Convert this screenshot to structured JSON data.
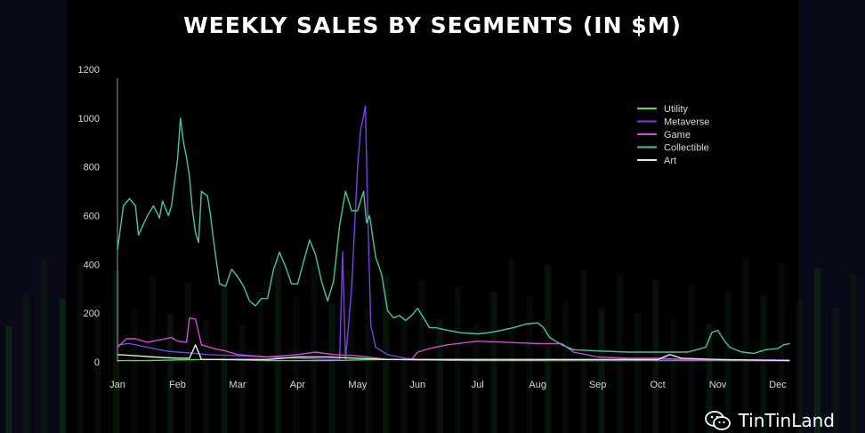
{
  "chart_data": {
    "type": "line",
    "title": "WEEKLY SALES BY SEGMENTS (IN $M)",
    "xlabel": "",
    "ylabel": "",
    "ylim": [
      0,
      1200
    ],
    "yticks": [
      0,
      200,
      400,
      600,
      800,
      1000,
      1200
    ],
    "x_categories": [
      "Jan",
      "Feb",
      "Mar",
      "Apr",
      "May",
      "Jun",
      "Jul",
      "Aug",
      "Sep",
      "Oct",
      "Nov",
      "Dec"
    ],
    "grid": false,
    "legend_position": "top-right",
    "series": [
      {
        "name": "Utility",
        "color": "#4ee04e",
        "points": [
          [
            0.0,
            5
          ],
          [
            0.5,
            5
          ],
          [
            1.0,
            8
          ],
          [
            1.5,
            10
          ],
          [
            2.0,
            8
          ],
          [
            2.5,
            5
          ],
          [
            3.0,
            5
          ],
          [
            3.5,
            5
          ],
          [
            4.0,
            8
          ],
          [
            4.5,
            10
          ],
          [
            5.0,
            8
          ],
          [
            6.0,
            5
          ],
          [
            7.0,
            5
          ],
          [
            8.0,
            5
          ],
          [
            9.0,
            5
          ],
          [
            10.0,
            5
          ],
          [
            11.0,
            5
          ],
          [
            11.2,
            5
          ]
        ]
      },
      {
        "name": "Metaverse",
        "color": "#7b3fe4",
        "points": [
          [
            0.0,
            70
          ],
          [
            0.2,
            75
          ],
          [
            0.5,
            60
          ],
          [
            0.8,
            45
          ],
          [
            1.0,
            40
          ],
          [
            1.3,
            35
          ],
          [
            1.5,
            30
          ],
          [
            2.0,
            25
          ],
          [
            2.5,
            20
          ],
          [
            3.0,
            15
          ],
          [
            3.5,
            10
          ],
          [
            3.7,
            10
          ],
          [
            3.75,
            450
          ],
          [
            3.8,
            10
          ],
          [
            3.9,
            300
          ],
          [
            4.0,
            800
          ],
          [
            4.05,
            950
          ],
          [
            4.1,
            1010
          ],
          [
            4.13,
            1050
          ],
          [
            4.17,
            600
          ],
          [
            4.22,
            150
          ],
          [
            4.3,
            60
          ],
          [
            4.5,
            30
          ],
          [
            4.8,
            15
          ],
          [
            5.0,
            10
          ],
          [
            6.0,
            10
          ],
          [
            7.0,
            10
          ],
          [
            8.0,
            8
          ],
          [
            9.0,
            8
          ],
          [
            10.0,
            8
          ],
          [
            11.2,
            8
          ]
        ]
      },
      {
        "name": "Game",
        "color": "#d14bd1",
        "points": [
          [
            0.0,
            60
          ],
          [
            0.15,
            95
          ],
          [
            0.3,
            95
          ],
          [
            0.5,
            80
          ],
          [
            0.7,
            90
          ],
          [
            0.9,
            100
          ],
          [
            1.0,
            85
          ],
          [
            1.15,
            80
          ],
          [
            1.2,
            180
          ],
          [
            1.3,
            175
          ],
          [
            1.4,
            70
          ],
          [
            1.6,
            55
          ],
          [
            1.8,
            45
          ],
          [
            2.0,
            30
          ],
          [
            2.5,
            20
          ],
          [
            3.0,
            30
          ],
          [
            3.3,
            40
          ],
          [
            3.6,
            30
          ],
          [
            4.0,
            25
          ],
          [
            4.5,
            10
          ],
          [
            4.9,
            10
          ],
          [
            5.0,
            40
          ],
          [
            5.2,
            55
          ],
          [
            5.5,
            70
          ],
          [
            6.0,
            85
          ],
          [
            6.5,
            80
          ],
          [
            7.0,
            75
          ],
          [
            7.4,
            75
          ],
          [
            7.6,
            40
          ],
          [
            8.0,
            20
          ],
          [
            8.5,
            15
          ],
          [
            9.0,
            15
          ],
          [
            9.5,
            10
          ],
          [
            10.0,
            10
          ],
          [
            10.5,
            5
          ],
          [
            11.2,
            5
          ]
        ]
      },
      {
        "name": "Collectible",
        "color": "#3fc9a0",
        "points": [
          [
            0.0,
            460
          ],
          [
            0.1,
            640
          ],
          [
            0.2,
            670
          ],
          [
            0.3,
            640
          ],
          [
            0.35,
            520
          ],
          [
            0.5,
            600
          ],
          [
            0.6,
            640
          ],
          [
            0.7,
            590
          ],
          [
            0.75,
            660
          ],
          [
            0.85,
            600
          ],
          [
            0.9,
            640
          ],
          [
            1.0,
            830
          ],
          [
            1.05,
            1000
          ],
          [
            1.1,
            900
          ],
          [
            1.15,
            840
          ],
          [
            1.2,
            760
          ],
          [
            1.25,
            620
          ],
          [
            1.3,
            530
          ],
          [
            1.35,
            490
          ],
          [
            1.4,
            700
          ],
          [
            1.5,
            680
          ],
          [
            1.55,
            600
          ],
          [
            1.6,
            500
          ],
          [
            1.7,
            320
          ],
          [
            1.8,
            310
          ],
          [
            1.9,
            380
          ],
          [
            2.0,
            350
          ],
          [
            2.1,
            310
          ],
          [
            2.2,
            250
          ],
          [
            2.3,
            230
          ],
          [
            2.4,
            260
          ],
          [
            2.5,
            260
          ],
          [
            2.6,
            380
          ],
          [
            2.7,
            450
          ],
          [
            2.8,
            390
          ],
          [
            2.9,
            320
          ],
          [
            3.0,
            320
          ],
          [
            3.1,
            410
          ],
          [
            3.2,
            500
          ],
          [
            3.3,
            440
          ],
          [
            3.4,
            330
          ],
          [
            3.5,
            250
          ],
          [
            3.6,
            330
          ],
          [
            3.7,
            560
          ],
          [
            3.8,
            700
          ],
          [
            3.9,
            620
          ],
          [
            4.0,
            620
          ],
          [
            4.05,
            660
          ],
          [
            4.1,
            700
          ],
          [
            4.15,
            570
          ],
          [
            4.2,
            600
          ],
          [
            4.3,
            430
          ],
          [
            4.4,
            360
          ],
          [
            4.5,
            210
          ],
          [
            4.6,
            180
          ],
          [
            4.7,
            190
          ],
          [
            4.8,
            170
          ],
          [
            4.9,
            190
          ],
          [
            5.0,
            220
          ],
          [
            5.1,
            180
          ],
          [
            5.2,
            140
          ],
          [
            5.3,
            140
          ],
          [
            5.5,
            130
          ],
          [
            5.7,
            120
          ],
          [
            6.0,
            115
          ],
          [
            6.2,
            120
          ],
          [
            6.4,
            130
          ],
          [
            6.6,
            140
          ],
          [
            6.8,
            155
          ],
          [
            7.0,
            160
          ],
          [
            7.1,
            140
          ],
          [
            7.2,
            100
          ],
          [
            7.4,
            70
          ],
          [
            7.6,
            50
          ],
          [
            8.0,
            45
          ],
          [
            8.5,
            40
          ],
          [
            9.0,
            40
          ],
          [
            9.5,
            40
          ],
          [
            9.8,
            60
          ],
          [
            9.9,
            120
          ],
          [
            10.0,
            130
          ],
          [
            10.1,
            90
          ],
          [
            10.2,
            60
          ],
          [
            10.4,
            40
          ],
          [
            10.6,
            35
          ],
          [
            10.8,
            50
          ],
          [
            11.0,
            55
          ],
          [
            11.1,
            70
          ],
          [
            11.2,
            75
          ]
        ]
      },
      {
        "name": "Art",
        "color": "#e6e6e6",
        "points": [
          [
            0.0,
            30
          ],
          [
            0.3,
            25
          ],
          [
            0.6,
            20
          ],
          [
            1.0,
            15
          ],
          [
            1.2,
            15
          ],
          [
            1.3,
            70
          ],
          [
            1.4,
            10
          ],
          [
            1.6,
            10
          ],
          [
            2.0,
            10
          ],
          [
            2.5,
            10
          ],
          [
            3.0,
            20
          ],
          [
            3.5,
            20
          ],
          [
            4.0,
            15
          ],
          [
            4.5,
            10
          ],
          [
            5.0,
            10
          ],
          [
            6.0,
            10
          ],
          [
            7.0,
            10
          ],
          [
            8.0,
            10
          ],
          [
            9.0,
            10
          ],
          [
            9.2,
            30
          ],
          [
            9.4,
            15
          ],
          [
            10.0,
            10
          ],
          [
            11.2,
            5
          ]
        ]
      }
    ]
  },
  "watermark": {
    "text": "TinTinLand",
    "icon": "wechat-icon"
  }
}
